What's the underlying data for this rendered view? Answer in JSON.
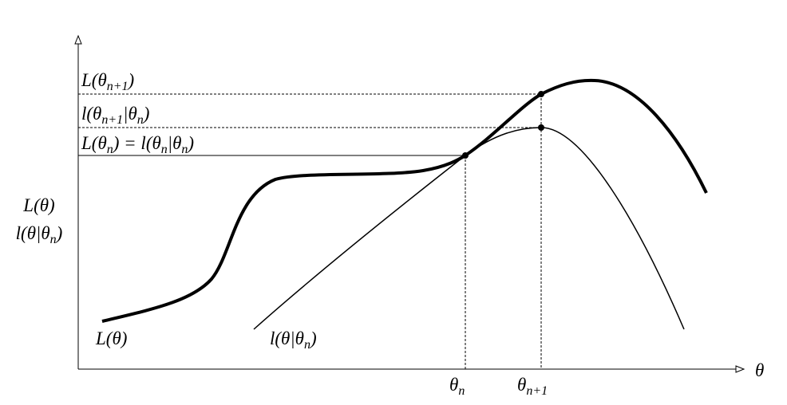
{
  "axes": {
    "y_label_1": [
      "L(θ",
      ")"
    ],
    "y_label_2": [
      "l(θ|θ",
      "n",
      ")"
    ],
    "x_label": "θ"
  },
  "levels": {
    "top": [
      "L(θ",
      "n+1",
      ")"
    ],
    "middle": [
      "l(θ",
      "n+1",
      "|θ",
      "n",
      ")"
    ],
    "bottom": [
      "L(θ",
      "n",
      ") = l(θ",
      "n",
      "|θ",
      "n",
      ")"
    ]
  },
  "curves": {
    "big": [
      "L(θ",
      ")"
    ],
    "small": [
      "l(θ|θ",
      "n",
      ")"
    ]
  },
  "x_ticks": {
    "first": [
      "θ",
      "n"
    ],
    "second": [
      "θ",
      "n+1"
    ]
  }
}
